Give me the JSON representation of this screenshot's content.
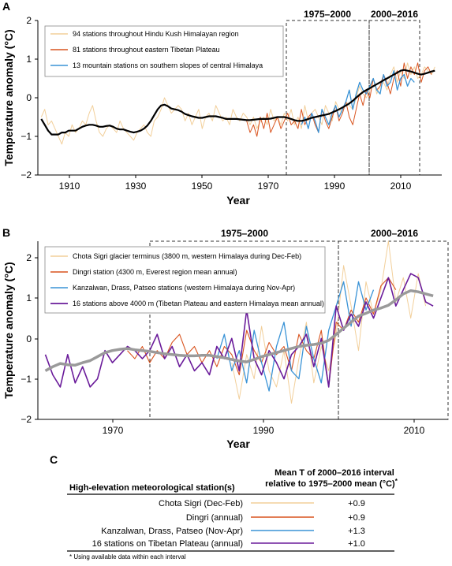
{
  "chart_data": [
    {
      "panel": "A",
      "type": "line",
      "xlabel": "Year",
      "ylabel": "Temperature anomaly (°C)",
      "xlim": [
        1900,
        2018
      ],
      "ylim": [
        -2,
        2
      ],
      "xticks": [
        1910,
        1930,
        1950,
        1970,
        1990,
        2010
      ],
      "yticks": [
        -2,
        -1,
        0,
        1,
        2
      ],
      "periods": [
        {
          "label": "1975–2000",
          "start": 1975,
          "end": 2000
        },
        {
          "label": "2000–2016",
          "start": 2000,
          "end": 2016
        }
      ],
      "legend_position": "top-left",
      "colors": {
        "hkh": "#f2cf9a",
        "tibet": "#d9541f",
        "himalaya": "#3a93d6",
        "smooth": "#000000"
      },
      "series": [
        {
          "name": "94 stations throughout Hindu Kush Himalayan region",
          "color_key": "hkh",
          "x_start": 1901,
          "values": [
            -0.5,
            -0.3,
            -0.7,
            -0.6,
            -0.8,
            -1.0,
            -1.2,
            -0.9,
            -1.0,
            -0.7,
            -0.9,
            -0.8,
            -0.6,
            -0.7,
            -0.4,
            -0.2,
            -0.6,
            -0.9,
            -1.0,
            -0.8,
            -0.7,
            -0.8,
            -0.9,
            -0.6,
            -0.8,
            -0.9,
            -1.0,
            -1.1,
            -0.9,
            -0.8,
            -0.7,
            -0.9,
            -1.0,
            -0.6,
            -0.5,
            -0.3,
            0.0,
            -0.2,
            -0.4,
            -0.3,
            -0.2,
            -0.3,
            -0.6,
            -0.4,
            -0.7,
            -0.5,
            -0.3,
            -0.8,
            -0.5,
            -0.4,
            -0.6,
            -0.2,
            -0.4,
            -0.6,
            -0.5,
            -0.7,
            -0.3,
            -0.5,
            -0.6,
            -0.4,
            -0.5,
            -0.7,
            -0.5,
            -0.8,
            -0.6,
            -0.5,
            -0.7,
            -0.3,
            -0.6,
            -0.5,
            -0.7,
            -0.4,
            -0.6,
            -0.3,
            -0.7,
            -0.5,
            -0.8,
            -0.2,
            -0.6,
            -0.4,
            -0.3,
            -0.5,
            -0.7,
            -0.2,
            -0.4,
            -0.6,
            -0.1,
            -0.3,
            -0.4,
            -0.1,
            -0.2,
            -0.3,
            0.0,
            0.3,
            0.1,
            0.0,
            0.2,
            0.5,
            0.1,
            0.3,
            0.4,
            0.2,
            0.6,
            0.8,
            0.4,
            0.7,
            0.5,
            0.9,
            0.6,
            0.8,
            0.5,
            0.6,
            0.8,
            0.7,
            0.6,
            0.8
          ]
        },
        {
          "name": "81 stations throughout eastern Tibetan Plateau",
          "color_key": "tibet",
          "x_start": 1961,
          "values": [
            -0.6,
            -0.9,
            -0.7,
            -1.0,
            -0.5,
            -0.8,
            -0.4,
            -0.9,
            -0.7,
            -0.5,
            -0.8,
            -0.6,
            -0.4,
            -0.7,
            -0.6,
            -0.8,
            -0.3,
            -0.7,
            -0.5,
            -0.4,
            -0.7,
            -0.9,
            -0.3,
            -0.6,
            -0.8,
            -0.5,
            -0.2,
            -0.6,
            -0.4,
            -0.1,
            -0.5,
            -0.7,
            -0.3,
            0.1,
            -0.2,
            0.2,
            0.0,
            0.5,
            0.2,
            0.3,
            0.6,
            0.4,
            0.1,
            0.5,
            0.7,
            0.3,
            0.9,
            0.5,
            0.8,
            0.6,
            0.9,
            0.4,
            0.7,
            0.8,
            0.6
          ]
        },
        {
          "name": "13 mountain stations on southern slopes of central Himalaya",
          "color_key": "himalaya",
          "x_start": 1977,
          "values": [
            -0.7,
            -0.5,
            -0.8,
            -0.4,
            -0.6,
            -0.9,
            -0.3,
            -0.5,
            -0.7,
            -0.4,
            -0.2,
            -0.5,
            -0.3,
            -0.1,
            0.2,
            -0.3,
            0.1,
            0.4,
            0.2,
            0.1,
            0.3,
            0.5,
            0.2,
            0.1,
            0.6,
            0.3,
            0.4,
            0.7,
            0.2,
            0.5,
            0.6,
            0.3,
            0.5,
            0.4
          ]
        },
        {
          "name": "",
          "color_key": "smooth",
          "x_start": 1901,
          "values": [
            -0.55,
            -0.7,
            -0.85,
            -0.95,
            -0.95,
            -0.95,
            -0.9,
            -0.9,
            -0.85,
            -0.85,
            -0.85,
            -0.8,
            -0.75,
            -0.72,
            -0.7,
            -0.7,
            -0.72,
            -0.75,
            -0.75,
            -0.73,
            -0.72,
            -0.75,
            -0.8,
            -0.82,
            -0.82,
            -0.85,
            -0.88,
            -0.9,
            -0.88,
            -0.85,
            -0.8,
            -0.72,
            -0.6,
            -0.45,
            -0.3,
            -0.2,
            -0.18,
            -0.22,
            -0.28,
            -0.3,
            -0.32,
            -0.36,
            -0.42,
            -0.45,
            -0.48,
            -0.5,
            -0.52,
            -0.52,
            -0.5,
            -0.48,
            -0.48,
            -0.48,
            -0.5,
            -0.52,
            -0.55,
            -0.55,
            -0.55,
            -0.55,
            -0.56,
            -0.57,
            -0.58,
            -0.58,
            -0.57,
            -0.56,
            -0.55,
            -0.55,
            -0.55,
            -0.54,
            -0.52,
            -0.5,
            -0.5,
            -0.5,
            -0.52,
            -0.55,
            -0.58,
            -0.6,
            -0.6,
            -0.58,
            -0.55,
            -0.52,
            -0.5,
            -0.48,
            -0.46,
            -0.44,
            -0.42,
            -0.38,
            -0.34,
            -0.3,
            -0.25,
            -0.2,
            -0.15,
            -0.08,
            0.0,
            0.08,
            0.15,
            0.2,
            0.25,
            0.3,
            0.35,
            0.4,
            0.45,
            0.5,
            0.55,
            0.6,
            0.65,
            0.7,
            0.72,
            0.7,
            0.68,
            0.65,
            0.62,
            0.6,
            0.62,
            0.65,
            0.68,
            0.7
          ]
        }
      ]
    },
    {
      "panel": "B",
      "type": "line",
      "xlabel": "Year",
      "ylabel": "Temperature anomaly (°C)",
      "xlim": [
        1960,
        2015
      ],
      "ylim": [
        -2,
        2.4
      ],
      "xticks": [
        1970,
        1990,
        2010
      ],
      "yticks": [
        -2,
        -1,
        0,
        1,
        2
      ],
      "periods": [
        {
          "label": "1975–2000",
          "start": 1975,
          "end": 2000
        },
        {
          "label": "2000–2016",
          "start": 2000,
          "end": 2016
        }
      ],
      "legend_position": "top-left",
      "colors": {
        "chota": "#f2cf9a",
        "dingri": "#d9541f",
        "kanz": "#3a93d6",
        "tib16": "#6a1b9a",
        "smooth": "#9a9a9a"
      },
      "series": [
        {
          "name": "Chota Sigri glacier terminus (3800 m, western Himalaya during Dec-Feb)",
          "color_key": "chota",
          "x_start": 1986,
          "values": [
            -0.6,
            -1.5,
            -0.4,
            -1.0,
            0.3,
            -0.8,
            -1.2,
            -0.3,
            -1.6,
            -0.5,
            0.4,
            -1.1,
            -0.2,
            -0.8,
            0.1,
            1.8,
            0.8,
            -0.3,
            1.4,
            0.6,
            1.2,
            2.4,
            0.9,
            1.5,
            0.5,
            1.6,
            0.8
          ]
        },
        {
          "name": "Dingri station (4300 m, Everest region mean annual)",
          "color_key": "dingri",
          "x_start": 1972,
          "values": [
            -0.3,
            -0.5,
            -0.2,
            -0.6,
            -0.3,
            -0.5,
            -0.1,
            0.1,
            -0.4,
            -0.2,
            -0.6,
            -0.3,
            -0.7,
            -0.2,
            -0.4,
            -0.9,
            0.2,
            -0.3,
            -0.6,
            -0.1,
            -0.4,
            -0.2,
            -0.8,
            0.1,
            -0.3,
            -0.5,
            0.2,
            -1.2,
            0.4,
            0.2,
            0.7,
            0.4,
            1.0,
            0.6,
            1.3,
            1.5,
            1.2
          ]
        },
        {
          "name": "Kanzalwan, Drass, Patseo stations (western Himalaya during Nov-Apr)",
          "color_key": "kanz",
          "x_start": 1984,
          "values": [
            -0.5,
            0.1,
            -0.8,
            -0.3,
            -1.1,
            0.2,
            -0.6,
            -1.3,
            -0.2,
            0.4,
            -0.8,
            -1.0,
            0.3,
            -0.5,
            -1.1,
            0.2,
            0.8,
            1.4,
            0.3,
            1.4,
            0.7,
            1.2
          ]
        },
        {
          "name": "16 stations above 4000 m (Tibetan Plateau and eastern Himalaya mean annual)",
          "color_key": "tib16",
          "x_start": 1961,
          "values": [
            -0.4,
            -0.9,
            -1.2,
            -0.4,
            -1.1,
            -0.7,
            -1.2,
            -1.0,
            -0.3,
            -0.6,
            -0.4,
            -0.2,
            -0.3,
            -0.5,
            -0.3,
            0.1,
            -0.5,
            -0.2,
            -0.7,
            -0.4,
            -0.8,
            -0.6,
            -0.9,
            -0.2,
            -0.5,
            0.0,
            -0.8,
            0.7,
            -0.5,
            -0.9,
            -0.3,
            -0.6,
            -1.0,
            -0.4,
            -0.2,
            0.1,
            -0.7,
            0.0,
            -1.2,
            0.8,
            0.2,
            0.6,
            0.3,
            0.9,
            0.5,
            1.0,
            1.5,
            0.8,
            1.2,
            1.6,
            1.5,
            0.9,
            0.8
          ]
        },
        {
          "name": "",
          "color_key": "smooth",
          "x_start": 1961,
          "values": [
            -0.8,
            -0.7,
            -0.62,
            -0.65,
            -0.66,
            -0.6,
            -0.55,
            -0.45,
            -0.35,
            -0.3,
            -0.27,
            -0.25,
            -0.28,
            -0.3,
            -0.32,
            -0.35,
            -0.38,
            -0.4,
            -0.42,
            -0.43,
            -0.43,
            -0.42,
            -0.42,
            -0.45,
            -0.48,
            -0.52,
            -0.56,
            -0.58,
            -0.52,
            -0.45,
            -0.4,
            -0.35,
            -0.3,
            -0.25,
            -0.2,
            -0.17,
            -0.15,
            -0.12,
            -0.05,
            0.1,
            0.25,
            0.4,
            0.55,
            0.62,
            0.7,
            0.75,
            0.82,
            0.95,
            1.1,
            1.18,
            1.15,
            1.1,
            1.05
          ]
        }
      ]
    }
  ],
  "labels": {
    "panel_a": "A",
    "panel_b": "B",
    "panel_c": "C",
    "period_1": "1975–2000",
    "period_2": "2000–2016",
    "year": "Year",
    "ylabel": "Temperature anomaly (°C)",
    "a_ticks_x": [
      "1910",
      "1930",
      "1950",
      "1970",
      "1990",
      "2010"
    ],
    "a_ticks_y": [
      "2",
      "1",
      "0",
      "−1",
      "−2"
    ],
    "b_ticks_x": [
      "1970",
      "1990",
      "2010"
    ],
    "b_ticks_y": [
      "2",
      "1",
      "0",
      "−1",
      "−2"
    ]
  },
  "table": {
    "col1_header": "High-elevation meteorological station(s)",
    "col2_header_line1": "Mean T of 2000–2016 interval",
    "col2_header_line2": "relative to 1975–2000 mean (°C)",
    "col2_header_mark": "*",
    "rows": [
      {
        "station": "Chota Sigri (Dec-Feb)",
        "color": "#f2cf9a",
        "value": "+0.9"
      },
      {
        "station": "Dingri (annual)",
        "color": "#d9541f",
        "value": "+0.9"
      },
      {
        "station": "Kanzalwan, Drass, Patseo (Nov-Apr)",
        "color": "#3a93d6",
        "value": "+1.3"
      },
      {
        "station": "16 stations on Tibetan Plateau (annual)",
        "color": "#6a1b9a",
        "value": "+1.0"
      }
    ],
    "footnote": "* Using available data within each interval"
  }
}
